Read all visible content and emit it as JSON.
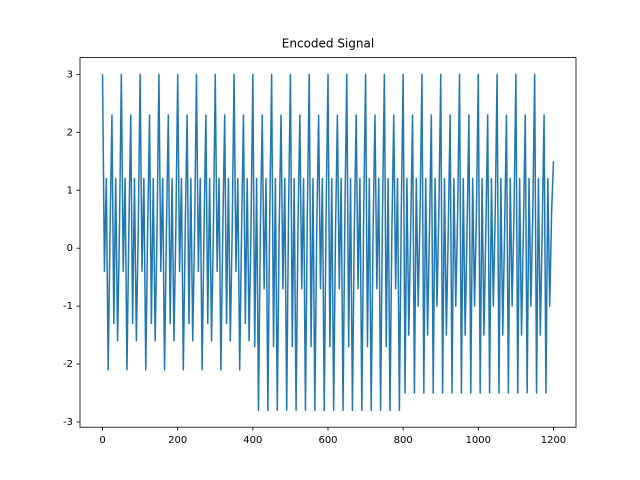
{
  "chart_data": {
    "type": "line",
    "title": "Encoded Signal",
    "color": "#1f77b4",
    "x": [
      0,
      5,
      10,
      15,
      20,
      25,
      30,
      35,
      40,
      45,
      50,
      55,
      60,
      65,
      70,
      75,
      80,
      85,
      90,
      95,
      100,
      105,
      110,
      115,
      120,
      125,
      130,
      135,
      140,
      145,
      150,
      155,
      160,
      165,
      170,
      175,
      180,
      185,
      190,
      195,
      200,
      205,
      210,
      215,
      220,
      225,
      230,
      235,
      240,
      245,
      250,
      255,
      260,
      265,
      270,
      275,
      280,
      285,
      290,
      295,
      300,
      305,
      310,
      315,
      320,
      325,
      330,
      335,
      340,
      345,
      350,
      355,
      360,
      365,
      370,
      375,
      380,
      385,
      390,
      395,
      400,
      405,
      410,
      415,
      420,
      425,
      430,
      435,
      440,
      445,
      450,
      455,
      460,
      465,
      470,
      475,
      480,
      485,
      490,
      495,
      500,
      505,
      510,
      515,
      520,
      525,
      530,
      535,
      540,
      545,
      550,
      555,
      560,
      565,
      570,
      575,
      580,
      585,
      590,
      595,
      600,
      605,
      610,
      615,
      620,
      625,
      630,
      635,
      640,
      645,
      650,
      655,
      660,
      665,
      670,
      675,
      680,
      685,
      690,
      695,
      700,
      705,
      710,
      715,
      720,
      725,
      730,
      735,
      740,
      745,
      750,
      755,
      760,
      765,
      770,
      775,
      780,
      785,
      790,
      795,
      800,
      805,
      810,
      815,
      820,
      825,
      830,
      835,
      840,
      845,
      850,
      855,
      860,
      865,
      870,
      875,
      880,
      885,
      890,
      895,
      900,
      905,
      910,
      915,
      920,
      925,
      930,
      935,
      940,
      945,
      950,
      955,
      960,
      965,
      970,
      975,
      980,
      985,
      990,
      995,
      1000,
      1005,
      1010,
      1015,
      1020,
      1025,
      1030,
      1035,
      1040,
      1045,
      1050,
      1055,
      1060,
      1065,
      1070,
      1075,
      1080,
      1085,
      1090,
      1095,
      1100,
      1105,
      1110,
      1115,
      1120,
      1125,
      1130,
      1135,
      1140,
      1145,
      1150,
      1155,
      1160,
      1165,
      1170,
      1175,
      1180,
      1185,
      1190,
      1195,
      1200
    ],
    "values": [
      3,
      -0.4,
      1.2,
      -2.1,
      0.3,
      2.3,
      -1.3,
      1.2,
      -1.6,
      0.3,
      3,
      -0.4,
      1.2,
      -2.1,
      0.3,
      2.3,
      -1.3,
      1.2,
      -1.6,
      0.3,
      3,
      -0.4,
      1.2,
      -2.1,
      0.3,
      2.3,
      -1.3,
      1.2,
      -1.6,
      0.3,
      3,
      -0.4,
      1.2,
      -2.1,
      0.3,
      2.3,
      -1.3,
      1.2,
      -1.6,
      0.3,
      3,
      -0.4,
      1.2,
      -2.1,
      0.3,
      2.3,
      -1.3,
      1.2,
      -1.6,
      0.3,
      3,
      -0.4,
      1.2,
      -2.1,
      0.3,
      2.3,
      -1.3,
      1.2,
      -1.6,
      0.3,
      3,
      -0.4,
      1.2,
      -2.1,
      0.3,
      2.3,
      -1.3,
      1.2,
      -1.6,
      0.3,
      3,
      -0.4,
      1.2,
      -2.1,
      0.3,
      2.3,
      -1.3,
      1.2,
      -1.6,
      0.3,
      3,
      -1.7,
      1.2,
      -2.8,
      0.3,
      2.3,
      -0.7,
      1.2,
      -2.8,
      0.6,
      3,
      -1.7,
      1.2,
      -2.8,
      0.3,
      2.3,
      -0.7,
      1.2,
      -2.8,
      0.6,
      3,
      -1.7,
      1.2,
      -2.8,
      0.3,
      2.3,
      -0.7,
      1.2,
      -2.8,
      0.6,
      3,
      -1.7,
      1.2,
      -2.8,
      0.3,
      2.3,
      -0.7,
      1.2,
      -2.8,
      0.6,
      3,
      -1.7,
      1.2,
      -2.8,
      0.3,
      2.3,
      -0.7,
      1.2,
      -2.8,
      0.6,
      3,
      -1.7,
      1.2,
      -2.8,
      0.3,
      2.3,
      -0.7,
      1.2,
      -2.8,
      0.6,
      3,
      -1.7,
      1.2,
      -2.8,
      0.3,
      2.3,
      -0.7,
      1.2,
      -2.8,
      0.6,
      3,
      -1.7,
      1.2,
      -2.8,
      0.3,
      2.3,
      -0.7,
      1.2,
      -2.8,
      0.6,
      3,
      -2.5,
      1.2,
      -1.5,
      0.3,
      2.3,
      -2.5,
      1.2,
      -1.0,
      0.6,
      3,
      -2.5,
      1.2,
      -1.5,
      0.3,
      2.3,
      -2.5,
      1.2,
      -1.0,
      0.6,
      3,
      -2.5,
      1.2,
      -1.5,
      0.3,
      2.3,
      -2.5,
      1.2,
      -1.0,
      0.6,
      3,
      -2.5,
      1.2,
      -1.5,
      0.3,
      2.3,
      -2.5,
      1.2,
      -1.0,
      0.6,
      3,
      -2.5,
      1.2,
      -1.5,
      0.3,
      2.3,
      -2.5,
      1.2,
      -1.0,
      0.6,
      3,
      -2.5,
      1.2,
      -1.5,
      0.3,
      2.3,
      -2.5,
      1.2,
      -1.0,
      0.6,
      3,
      -2.5,
      1.2,
      -1.5,
      0.3,
      2.3,
      -2.5,
      1.2,
      -1.0,
      0.6,
      3,
      -2.5,
      1.2,
      -1.5,
      0.3,
      2.3,
      -2.5,
      1.2,
      -1.0,
      0.6,
      1.5
    ],
    "xlim": [
      -60,
      1260
    ],
    "ylim": [
      -3.09,
      3.29
    ],
    "xticks": [
      0,
      200,
      400,
      600,
      800,
      1000,
      1200
    ],
    "yticks": [
      -3,
      -2,
      -1,
      0,
      1,
      2,
      3
    ]
  }
}
